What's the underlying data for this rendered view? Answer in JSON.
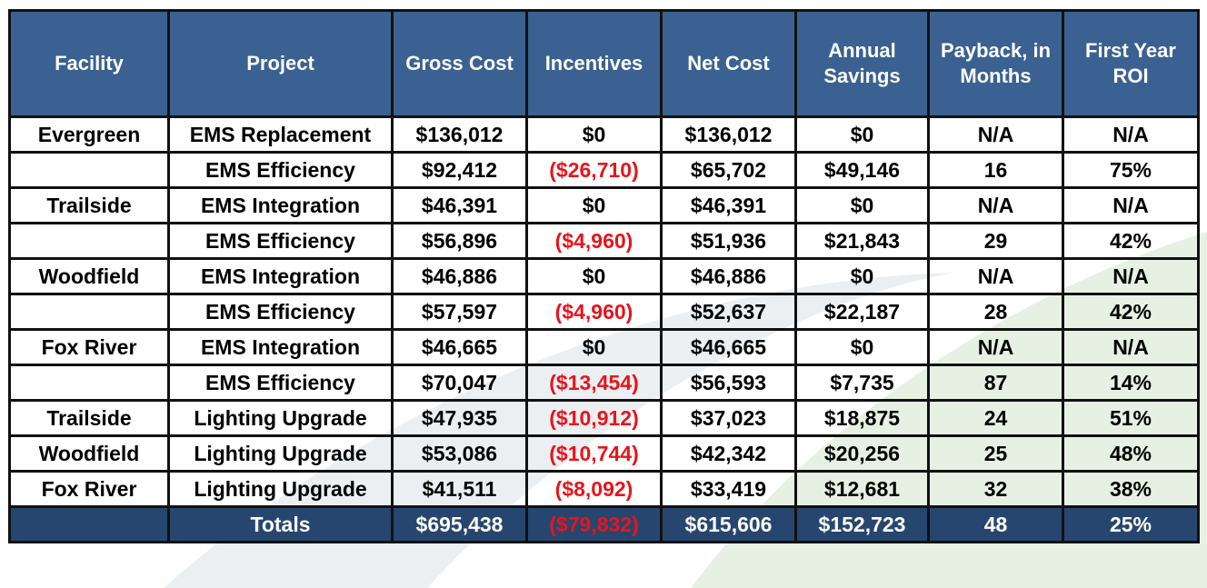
{
  "columns": [
    "Facility",
    "Project",
    "Gross Cost",
    "Incentives",
    "Net Cost",
    "Annual Savings",
    "Payback, in Months",
    "First Year ROI"
  ],
  "rows": [
    {
      "facility": "Evergreen",
      "project": "EMS Replacement",
      "gross": "$136,012",
      "incentives": "$0",
      "net": "$136,012",
      "savings": "$0",
      "payback": "N/A",
      "roi": "N/A"
    },
    {
      "facility": "",
      "project": "EMS Efficiency",
      "gross": "$92,412",
      "incentives": "($26,710)",
      "net": "$65,702",
      "savings": "$49,146",
      "payback": "16",
      "roi": "75%"
    },
    {
      "facility": "Trailside",
      "project": "EMS Integration",
      "gross": "$46,391",
      "incentives": "$0",
      "net": "$46,391",
      "savings": "$0",
      "payback": "N/A",
      "roi": "N/A"
    },
    {
      "facility": "",
      "project": "EMS Efficiency",
      "gross": "$56,896",
      "incentives": "($4,960)",
      "net": "$51,936",
      "savings": "$21,843",
      "payback": "29",
      "roi": "42%"
    },
    {
      "facility": "Woodfield",
      "project": "EMS Integration",
      "gross": "$46,886",
      "incentives": "$0",
      "net": "$46,886",
      "savings": "$0",
      "payback": "N/A",
      "roi": "N/A"
    },
    {
      "facility": "",
      "project": "EMS Efficiency",
      "gross": "$57,597",
      "incentives": "($4,960)",
      "net": "$52,637",
      "savings": "$22,187",
      "payback": "28",
      "roi": "42%"
    },
    {
      "facility": "Fox River",
      "project": "EMS Integration",
      "gross": "$46,665",
      "incentives": "$0",
      "net": "$46,665",
      "savings": "$0",
      "payback": "N/A",
      "roi": "N/A"
    },
    {
      "facility": "",
      "project": "EMS Efficiency",
      "gross": "$70,047",
      "incentives": "($13,454)",
      "net": "$56,593",
      "savings": "$7,735",
      "payback": "87",
      "roi": "14%"
    },
    {
      "facility": "Trailside",
      "project": "Lighting Upgrade",
      "gross": "$47,935",
      "incentives": "($10,912)",
      "net": "$37,023",
      "savings": "$18,875",
      "payback": "24",
      "roi": "51%"
    },
    {
      "facility": "Woodfield",
      "project": "Lighting Upgrade",
      "gross": "$53,086",
      "incentives": "($10,744)",
      "net": "$42,342",
      "savings": "$20,256",
      "payback": "25",
      "roi": "48%"
    },
    {
      "facility": "Fox River",
      "project": "Lighting Upgrade",
      "gross": "$41,511",
      "incentives": "($8,092)",
      "net": "$33,419",
      "savings": "$12,681",
      "payback": "32",
      "roi": "38%"
    }
  ],
  "totals": {
    "facility": "",
    "project": "Totals",
    "gross": "$695,438",
    "incentives": "($79,832)",
    "net": "$615,606",
    "savings": "$152,723",
    "payback": "48",
    "roi": "25%"
  },
  "colors": {
    "header_bg": "#3a6191",
    "totals_bg": "#27466f",
    "negative": "#e8141b"
  }
}
